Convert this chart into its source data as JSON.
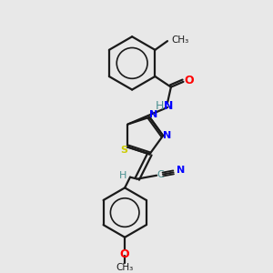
{
  "background_color": "#e8e8e8",
  "bond_color": "#1a1a1a",
  "atom_colors": {
    "N": "#0000ff",
    "O": "#ff0000",
    "S": "#cccc00",
    "C": "#1a1a1a",
    "H": "#4a9090",
    "CN_C": "#4a9090",
    "CN_N": "#0000ff"
  },
  "figsize": [
    3.0,
    3.0
  ],
  "dpi": 100
}
